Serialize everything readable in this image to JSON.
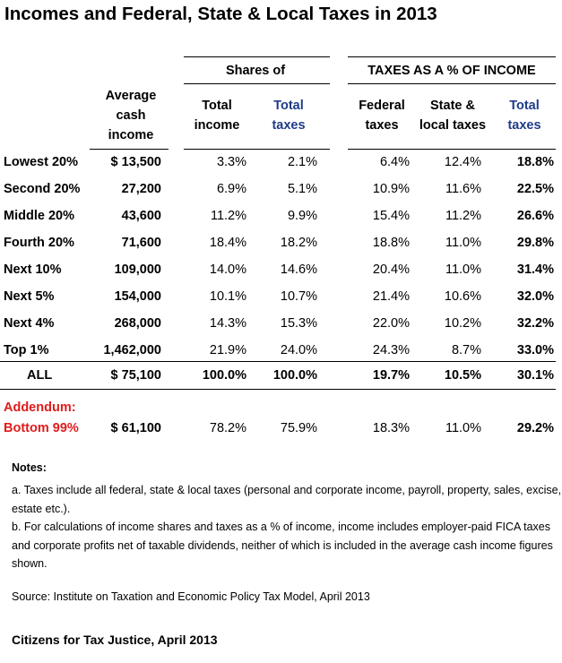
{
  "title": "Incomes and Federal, State & Local Taxes in 2013",
  "headers": {
    "shares_group": "Shares of",
    "taxes_group": "TAXES AS A % OF INCOME",
    "avg_income": [
      "Average",
      "cash",
      "income"
    ],
    "total_income": [
      "Total",
      "income"
    ],
    "total_taxes": [
      "Total",
      "taxes"
    ],
    "federal": [
      "Federal",
      "taxes"
    ],
    "state_local": [
      "State &",
      "local taxes"
    ],
    "total_rate": [
      "Total",
      "taxes"
    ]
  },
  "rows": [
    {
      "label": "Lowest 20%",
      "avg": "$ 13,500",
      "share_income": "3.3%",
      "share_taxes": "2.1%",
      "federal": "6.4%",
      "state_local": "12.4%",
      "total": "18.8%"
    },
    {
      "label": "Second 20%",
      "avg": "27,200",
      "share_income": "6.9%",
      "share_taxes": "5.1%",
      "federal": "10.9%",
      "state_local": "11.6%",
      "total": "22.5%"
    },
    {
      "label": "Middle 20%",
      "avg": "43,600",
      "share_income": "11.2%",
      "share_taxes": "9.9%",
      "federal": "15.4%",
      "state_local": "11.2%",
      "total": "26.6%"
    },
    {
      "label": "Fourth 20%",
      "avg": "71,600",
      "share_income": "18.4%",
      "share_taxes": "18.2%",
      "federal": "18.8%",
      "state_local": "11.0%",
      "total": "29.8%"
    },
    {
      "label": "Next 10%",
      "avg": "109,000",
      "share_income": "14.0%",
      "share_taxes": "14.6%",
      "federal": "20.4%",
      "state_local": "11.0%",
      "total": "31.4%"
    },
    {
      "label": "Next 5%",
      "avg": "154,000",
      "share_income": "10.1%",
      "share_taxes": "10.7%",
      "federal": "21.4%",
      "state_local": "10.6%",
      "total": "32.0%"
    },
    {
      "label": "Next 4%",
      "avg": "268,000",
      "share_income": "14.3%",
      "share_taxes": "15.3%",
      "federal": "22.0%",
      "state_local": "10.2%",
      "total": "32.2%"
    },
    {
      "label": "Top 1%",
      "avg": "1,462,000",
      "share_income": "21.9%",
      "share_taxes": "24.0%",
      "federal": "24.3%",
      "state_local": "8.7%",
      "total": "33.0%"
    }
  ],
  "all_row": {
    "label": "ALL",
    "avg": "$ 75,100",
    "share_income": "100.0%",
    "share_taxes": "100.0%",
    "federal": "19.7%",
    "state_local": "10.5%",
    "total": "30.1%"
  },
  "addendum": {
    "label1": "Addendum:",
    "label2": "Bottom 99%",
    "avg": "$ 61,100",
    "share_income": "78.2%",
    "share_taxes": "75.9%",
    "federal": "18.3%",
    "state_local": "11.0%",
    "total": "29.2%"
  },
  "notes": {
    "title": "Notes:",
    "a_line1": "a. Taxes include all federal, state & local taxes (personal and corporate income, payroll, property, sales, excise,",
    "a_line2": "estate etc.).",
    "b_line1": "b. For calculations of income shares and taxes as a % of income, income includes employer-paid FICA taxes",
    "b_line2": "and corporate profits net of taxable dividends, neither of which is included in the average cash income figures",
    "b_line3": "shown.",
    "source": "Source: Institute on Taxation and Economic Policy Tax Model, April 2013"
  },
  "footer": "Citizens for Tax Justice, April 2013",
  "colors": {
    "blue_header": "#1f3c88",
    "addendum_red": "#e01b1b"
  }
}
